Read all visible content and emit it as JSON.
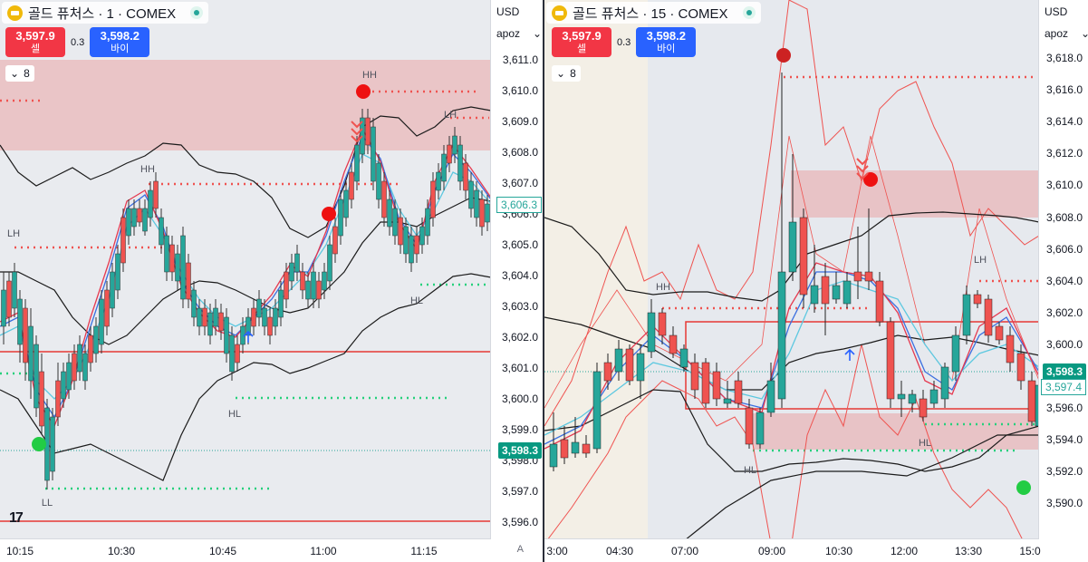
{
  "left": {
    "header": {
      "title": "골드 퓨처스 · 1 · COMEX"
    },
    "trade": {
      "sell_price": "3,597.9",
      "sell_label": "셀",
      "spread": "0.3",
      "buy_price": "3,598.2",
      "buy_label": "바이"
    },
    "indicator_count": "8",
    "currency": "USD",
    "scale_mode": "apoz",
    "price_ticks": [
      "3,611.0",
      "3,610.0",
      "3,609.0",
      "3,608.0",
      "3,607.0",
      "3,606.0",
      "3,605.0",
      "3,604.0",
      "3,603.0",
      "3,602.0",
      "3,601.0",
      "3,600.0",
      "3,599.0",
      "3,598.0",
      "3,597.0",
      "3,596.0"
    ],
    "last_price": "3,598.3",
    "line_price": "3,606.3",
    "time_ticks": [
      "10:15",
      "10:30",
      "10:45",
      "11:00",
      "11:15"
    ],
    "labels": {
      "hh1": "HH",
      "hh2": "HH",
      "lh": "LH",
      "lh2": "LH",
      "hl1": "HL",
      "hl2": "HL",
      "ll": "LL"
    },
    "axis_mode": "A",
    "tv_logo": "17"
  },
  "right": {
    "header": {
      "title": "골드 퓨처스 · 15 · COMEX"
    },
    "trade": {
      "sell_price": "3,597.9",
      "sell_label": "셀",
      "spread": "0.3",
      "buy_price": "3,598.2",
      "buy_label": "바이"
    },
    "indicator_count": "8",
    "currency": "USD",
    "scale_mode": "apoz",
    "price_ticks": [
      "3,618.0",
      "3,616.0",
      "3,614.0",
      "3,612.0",
      "3,610.0",
      "3,608.0",
      "3,606.0",
      "3,604.0",
      "3,602.0",
      "3,600.0",
      "3,598.0",
      "3,596.0",
      "3,594.0",
      "3,592.0",
      "3,590.0"
    ],
    "last_price": "3,598.3",
    "line_price": "3,597.4",
    "time_ticks": [
      "3:00",
      "04:30",
      "07:00",
      "09:00",
      "10:30",
      "12:00",
      "13:30",
      "15:0"
    ],
    "labels": {
      "hh": "HH",
      "hl1": "HL",
      "hl2": "HL",
      "lh": "LH"
    }
  },
  "colors": {
    "up": "#26a69a",
    "down": "#ef5350",
    "zone": "#f0b8bf",
    "sell": "#f23645",
    "buy": "#2962ff"
  },
  "icons": [
    "gold-coin-icon",
    "live-status-icon",
    "chevron-down-icon",
    "tradingview-logo"
  ]
}
